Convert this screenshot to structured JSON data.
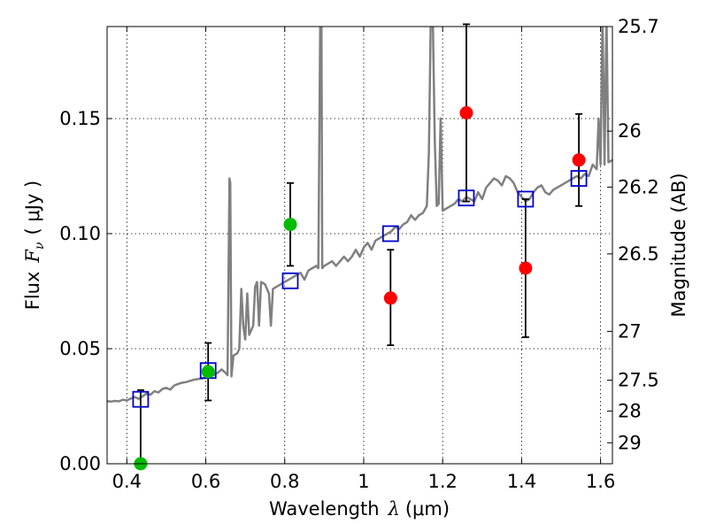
{
  "chart_data": {
    "type": "scatter",
    "xlabel_prefix": "Wavelength",
    "xlabel_symbol": "λ",
    "xlabel_unit": "(μm)",
    "ylabel_prefix": "Flux",
    "ylabel_symbol": "F",
    "ylabel_sub": "ν",
    "ylabel_unit": "( μJy )",
    "y2label": "Magnitude (AB)",
    "xlim": [
      0.35,
      1.63
    ],
    "ylim": [
      0.0,
      0.19
    ],
    "grid": true,
    "x_ticks": [
      {
        "value": 0.4,
        "label": "0.4"
      },
      {
        "value": 0.6,
        "label": "0.6"
      },
      {
        "value": 0.8,
        "label": "0.8"
      },
      {
        "value": 1.0,
        "label": "1"
      },
      {
        "value": 1.2,
        "label": "1.2"
      },
      {
        "value": 1.4,
        "label": "1.4"
      },
      {
        "value": 1.6,
        "label": "1.6"
      }
    ],
    "y_ticks": [
      {
        "value": 0.0,
        "label": "0.00"
      },
      {
        "value": 0.05,
        "label": "0.05"
      },
      {
        "value": 0.1,
        "label": "0.10"
      },
      {
        "value": 0.15,
        "label": "0.15"
      }
    ],
    "mag_ticks": [
      {
        "value": 25.7,
        "label": "25.7"
      },
      {
        "value": 26.0,
        "label": "26"
      },
      {
        "value": 26.2,
        "label": "26.2"
      },
      {
        "value": 26.5,
        "label": "26.5"
      },
      {
        "value": 27.0,
        "label": "27"
      },
      {
        "value": 27.5,
        "label": "27.5"
      },
      {
        "value": 28.0,
        "label": "28"
      },
      {
        "value": 29.0,
        "label": "29"
      }
    ],
    "series": [
      {
        "kind": "model-spectrum",
        "color": "#808080",
        "points": [
          [
            0.35,
            0.0272
          ],
          [
            0.36,
            0.027
          ],
          [
            0.37,
            0.0273
          ],
          [
            0.38,
            0.0271
          ],
          [
            0.39,
            0.0278
          ],
          [
            0.4,
            0.0275
          ],
          [
            0.41,
            0.0283
          ],
          [
            0.42,
            0.029
          ],
          [
            0.43,
            0.0282
          ],
          [
            0.44,
            0.0293
          ],
          [
            0.45,
            0.0305
          ],
          [
            0.46,
            0.03
          ],
          [
            0.47,
            0.0315
          ],
          [
            0.48,
            0.031
          ],
          [
            0.49,
            0.0325
          ],
          [
            0.5,
            0.033
          ],
          [
            0.51,
            0.0322
          ],
          [
            0.52,
            0.034
          ],
          [
            0.53,
            0.0347
          ],
          [
            0.54,
            0.0352
          ],
          [
            0.55,
            0.0355
          ],
          [
            0.56,
            0.036
          ],
          [
            0.57,
            0.0365
          ],
          [
            0.58,
            0.0368
          ],
          [
            0.59,
            0.037
          ],
          [
            0.6,
            0.0374
          ],
          [
            0.61,
            0.0378
          ],
          [
            0.62,
            0.0385
          ],
          [
            0.63,
            0.0395
          ],
          [
            0.64,
            0.041
          ],
          [
            0.65,
            0.0395
          ],
          [
            0.655,
            0.0385
          ],
          [
            0.66,
            0.124
          ],
          [
            0.662,
            0.122
          ],
          [
            0.665,
            0.038
          ],
          [
            0.67,
            0.047
          ],
          [
            0.68,
            0.048
          ],
          [
            0.685,
            0.05
          ],
          [
            0.69,
            0.076
          ],
          [
            0.695,
            0.06
          ],
          [
            0.7,
            0.054
          ],
          [
            0.705,
            0.074
          ],
          [
            0.71,
            0.056
          ],
          [
            0.72,
            0.06
          ],
          [
            0.725,
            0.077
          ],
          [
            0.73,
            0.079
          ],
          [
            0.735,
            0.06
          ],
          [
            0.74,
            0.079
          ],
          [
            0.75,
            0.078
          ],
          [
            0.76,
            0.074
          ],
          [
            0.765,
            0.06
          ],
          [
            0.77,
            0.076
          ],
          [
            0.78,
            0.077
          ],
          [
            0.79,
            0.078
          ],
          [
            0.8,
            0.079
          ],
          [
            0.81,
            0.08
          ],
          [
            0.82,
            0.081
          ],
          [
            0.83,
            0.082
          ],
          [
            0.84,
            0.083
          ],
          [
            0.85,
            0.08
          ],
          [
            0.86,
            0.084
          ],
          [
            0.87,
            0.085
          ],
          [
            0.88,
            0.086
          ],
          [
            0.885,
            0.085
          ],
          [
            0.89,
            0.195
          ],
          [
            0.893,
            0.195
          ],
          [
            0.895,
            0.085
          ],
          [
            0.9,
            0.086
          ],
          [
            0.91,
            0.087
          ],
          [
            0.92,
            0.088
          ],
          [
            0.93,
            0.086
          ],
          [
            0.94,
            0.088
          ],
          [
            0.95,
            0.09
          ],
          [
            0.96,
            0.088
          ],
          [
            0.97,
            0.09
          ],
          [
            0.98,
            0.093
          ],
          [
            0.99,
            0.09
          ],
          [
            1.0,
            0.094
          ],
          [
            1.01,
            0.096
          ],
          [
            1.02,
            0.093
          ],
          [
            1.03,
            0.097
          ],
          [
            1.04,
            0.098
          ],
          [
            1.05,
            0.099
          ],
          [
            1.06,
            0.1
          ],
          [
            1.07,
            0.101
          ],
          [
            1.08,
            0.103
          ],
          [
            1.09,
            0.102
          ],
          [
            1.1,
            0.104
          ],
          [
            1.11,
            0.105
          ],
          [
            1.12,
            0.108
          ],
          [
            1.13,
            0.106
          ],
          [
            1.14,
            0.108
          ],
          [
            1.15,
            0.109
          ],
          [
            1.16,
            0.112
          ],
          [
            1.165,
            0.135
          ],
          [
            1.17,
            0.195
          ],
          [
            1.175,
            0.195
          ],
          [
            1.18,
            0.14
          ],
          [
            1.185,
            0.112
          ],
          [
            1.19,
            0.113
          ],
          [
            1.195,
            0.15
          ],
          [
            1.2,
            0.11
          ],
          [
            1.21,
            0.111
          ],
          [
            1.22,
            0.112
          ],
          [
            1.23,
            0.113
          ],
          [
            1.24,
            0.115
          ],
          [
            1.25,
            0.114
          ],
          [
            1.26,
            0.116
          ],
          [
            1.27,
            0.115
          ],
          [
            1.28,
            0.114
          ],
          [
            1.29,
            0.118
          ],
          [
            1.3,
            0.115
          ],
          [
            1.31,
            0.12
          ],
          [
            1.32,
            0.122
          ],
          [
            1.33,
            0.124
          ],
          [
            1.34,
            0.123
          ],
          [
            1.35,
            0.121
          ],
          [
            1.36,
            0.125
          ],
          [
            1.37,
            0.124
          ],
          [
            1.38,
            0.122
          ],
          [
            1.39,
            0.118
          ],
          [
            1.4,
            0.116
          ],
          [
            1.41,
            0.114
          ],
          [
            1.42,
            0.115
          ],
          [
            1.43,
            0.118
          ],
          [
            1.44,
            0.12
          ],
          [
            1.45,
            0.121
          ],
          [
            1.46,
            0.118
          ],
          [
            1.47,
            0.117
          ],
          [
            1.48,
            0.119
          ],
          [
            1.49,
            0.12
          ],
          [
            1.5,
            0.121
          ],
          [
            1.51,
            0.122
          ],
          [
            1.52,
            0.123
          ],
          [
            1.53,
            0.124
          ],
          [
            1.54,
            0.125
          ],
          [
            1.55,
            0.124
          ],
          [
            1.56,
            0.126
          ],
          [
            1.57,
            0.125
          ],
          [
            1.58,
            0.13
          ],
          [
            1.59,
            0.128
          ],
          [
            1.595,
            0.15
          ],
          [
            1.6,
            0.13
          ],
          [
            1.605,
            0.195
          ],
          [
            1.61,
            0.13
          ],
          [
            1.615,
            0.195
          ],
          [
            1.62,
            0.131
          ],
          [
            1.63,
            0.132
          ]
        ]
      },
      {
        "kind": "model-photometry",
        "marker": "open-square",
        "color": "#0000cc",
        "points": [
          {
            "x": 0.435,
            "y": 0.028
          },
          {
            "x": 0.606,
            "y": 0.0405
          },
          {
            "x": 0.814,
            "y": 0.0795
          },
          {
            "x": 1.068,
            "y": 0.1
          },
          {
            "x": 1.26,
            "y": 0.1155
          },
          {
            "x": 1.41,
            "y": 0.115
          },
          {
            "x": 1.545,
            "y": 0.124
          }
        ]
      },
      {
        "kind": "observed",
        "marker": "filled-circle",
        "color": "#00bb00",
        "points": [
          {
            "x": 0.435,
            "y": 0.0,
            "err_low": 0.0,
            "err_high": 0.032
          },
          {
            "x": 0.606,
            "y": 0.04,
            "err_low": 0.0275,
            "err_high": 0.0525
          },
          {
            "x": 0.814,
            "y": 0.104,
            "err_low": 0.086,
            "err_high": 0.122
          }
        ]
      },
      {
        "kind": "observed",
        "marker": "filled-circle",
        "color": "#ff0000",
        "points": [
          {
            "x": 1.068,
            "y": 0.072,
            "err_low": 0.0515,
            "err_high": 0.093
          },
          {
            "x": 1.26,
            "y": 0.1525,
            "err_low": 0.114,
            "err_high": 0.191
          },
          {
            "x": 1.41,
            "y": 0.085,
            "err_low": 0.055,
            "err_high": 0.115
          },
          {
            "x": 1.545,
            "y": 0.132,
            "err_low": 0.112,
            "err_high": 0.152
          }
        ]
      }
    ]
  }
}
